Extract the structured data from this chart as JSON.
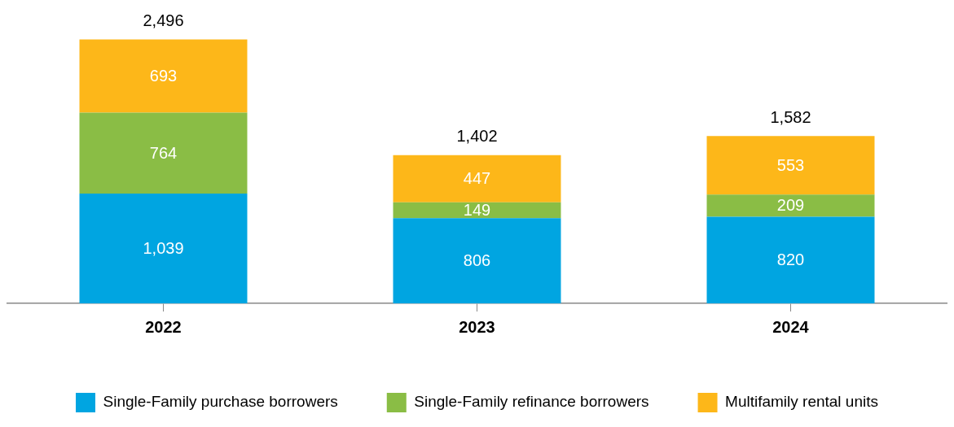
{
  "chart_data": {
    "type": "bar",
    "stacked": true,
    "categories": [
      "2022",
      "2023",
      "2024"
    ],
    "series": [
      {
        "name": "Single-Family purchase borrowers",
        "color": "#00a5e1",
        "values": [
          1039,
          806,
          820
        ],
        "value_labels": [
          "1,039",
          "806",
          "820"
        ]
      },
      {
        "name": "Single-Family refinance borrowers",
        "color": "#8abd45",
        "values": [
          764,
          149,
          209
        ],
        "value_labels": [
          "764",
          "149",
          "209"
        ]
      },
      {
        "name": "Multifamily rental units",
        "color": "#fdb719",
        "values": [
          693,
          447,
          553
        ],
        "value_labels": [
          "693",
          "447",
          "553"
        ]
      }
    ],
    "totals": [
      "2,496",
      "1,402",
      "1,582"
    ],
    "grid": false,
    "legend": "bottom"
  }
}
